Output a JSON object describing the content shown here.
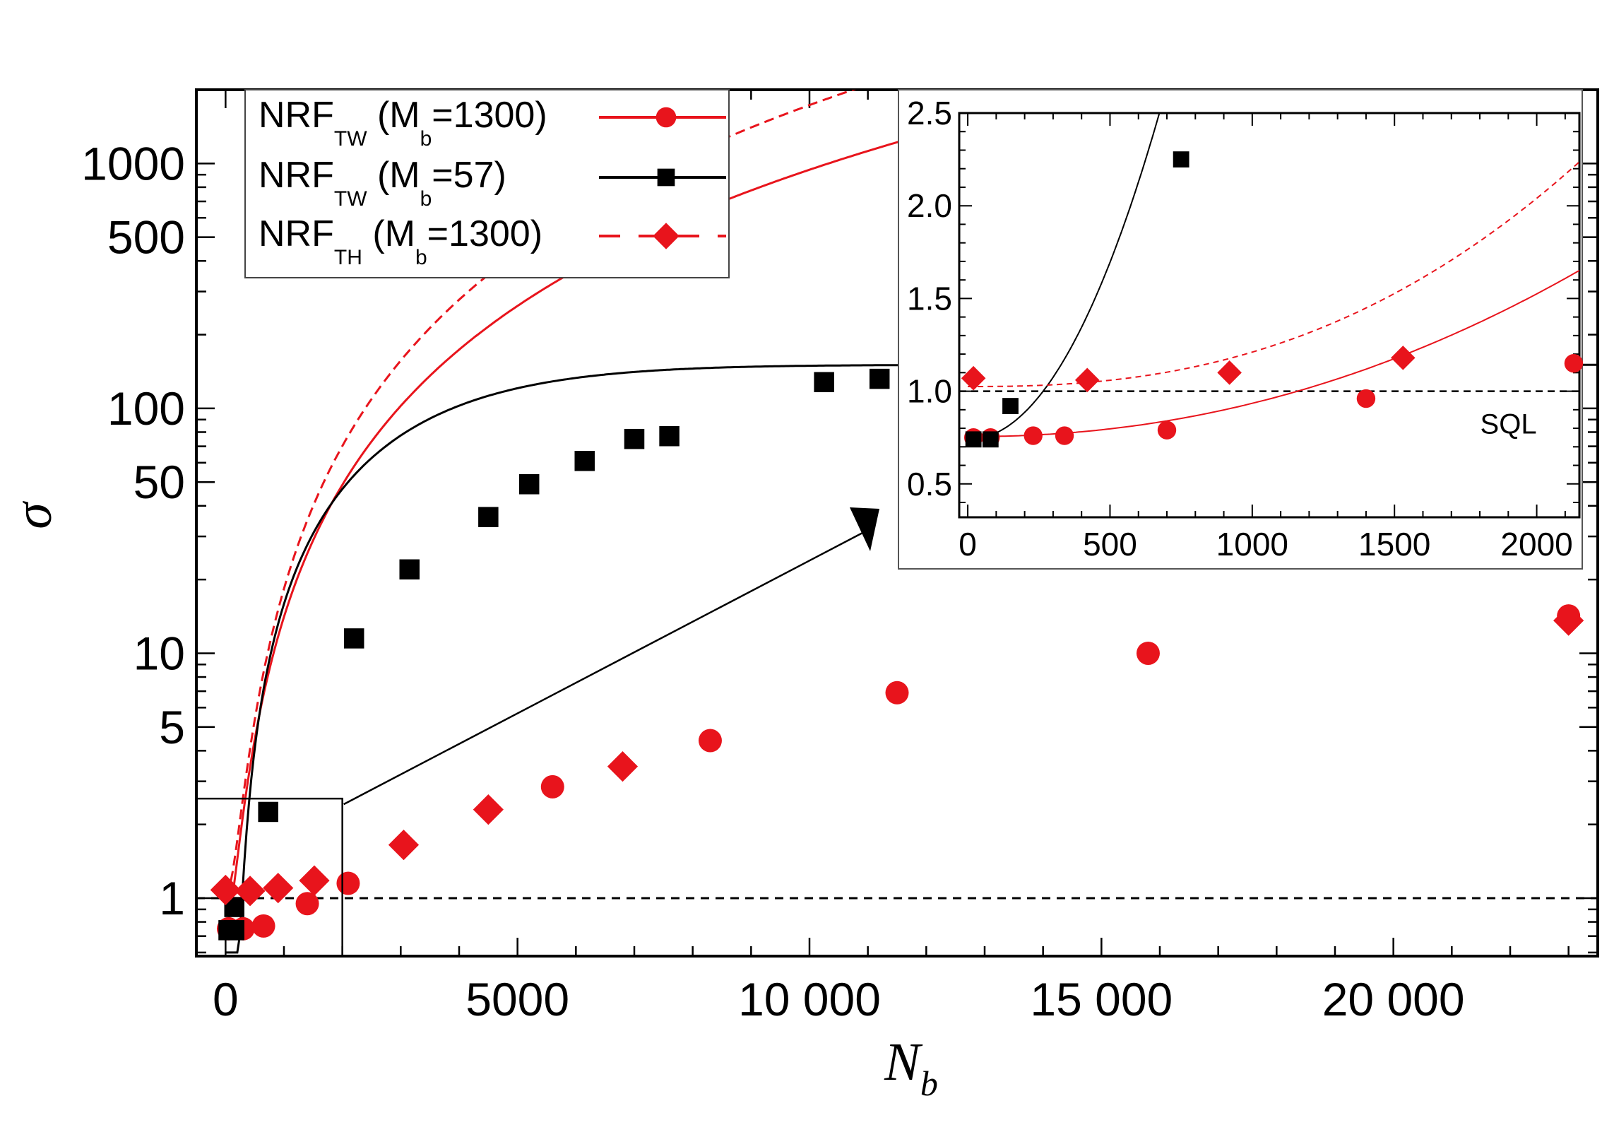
{
  "chart_data": [
    {
      "id": "main",
      "type": "scatter",
      "title": "",
      "xlabel": "N",
      "xlabel_subscript": "b",
      "ylabel": "σ",
      "xscale": "linear",
      "yscale": "log",
      "xlim": [
        -500,
        23500
      ],
      "ylim": [
        0.58,
        2000
      ],
      "xticks": [
        0,
        5000,
        10000,
        15000,
        20000
      ],
      "xtick_labels": [
        "0",
        "5000",
        "10 000",
        "15 000",
        "20 000"
      ],
      "yticks": [
        1,
        5,
        10,
        50,
        100,
        500,
        1000
      ],
      "ytick_labels": [
        "1",
        "5",
        "10",
        "50",
        "100",
        "500",
        "1000"
      ],
      "reference_line": {
        "y": 1,
        "style": "dashed",
        "color": "#000000"
      },
      "legend_position": "top-left",
      "series": [
        {
          "name": "NRF_TW (M_b=1300)",
          "label_main": "NRF",
          "label_sub": "TW",
          "label_paren_pre": " (M",
          "label_paren_sub": "b",
          "label_paren_post": "=1300)",
          "marker": "circle",
          "line": "solid",
          "color": "#e8141c",
          "points": [
            [
              50,
              0.75
            ],
            [
              300,
              0.75
            ],
            [
              650,
              0.77
            ],
            [
              1400,
              0.95
            ],
            [
              2100,
              1.15
            ],
            [
              5600,
              2.85
            ],
            [
              8300,
              4.4
            ],
            [
              11500,
              6.9
            ],
            [
              15800,
              10.0
            ],
            [
              23000,
              14.2
            ]
          ],
          "fit": {
            "a": 0.76,
            "b": 3.75e-05,
            "p": 1.85
          }
        },
        {
          "name": "NRF_TW (M_b=57)",
          "label_main": "NRF",
          "label_sub": "TW",
          "label_paren_pre": " (M",
          "label_paren_sub": "b",
          "label_paren_post": "=57)",
          "marker": "square",
          "line": "solid",
          "color": "#000000",
          "points": [
            [
              50,
              0.74
            ],
            [
              150,
              0.74
            ],
            [
              150,
              0.92
            ],
            [
              730,
              2.25
            ],
            [
              2200,
              11.5
            ],
            [
              3150,
              22
            ],
            [
              4500,
              36
            ],
            [
              5200,
              49
            ],
            [
              6150,
              61
            ],
            [
              7000,
              75
            ],
            [
              7600,
              77
            ],
            [
              10250,
              128
            ],
            [
              11200,
              132
            ]
          ],
          "fit": {
            "cap": 150,
            "k": 0.000288,
            "p": 1.5,
            "n0": 215
          }
        },
        {
          "name": "NRF_TH (M_b=1300)",
          "label_main": "NRF",
          "label_sub": "TH",
          "label_paren_pre": " (M",
          "label_paren_sub": "b",
          "label_paren_post": "=1300)",
          "marker": "diamond",
          "line": "dashed",
          "color": "#e8141c",
          "points": [
            [
              0,
              1.08
            ],
            [
              420,
              1.07
            ],
            [
              900,
              1.1
            ],
            [
              1520,
              1.18
            ],
            [
              3050,
              1.65
            ],
            [
              4500,
              2.3
            ],
            [
              6800,
              3.45
            ],
            [
              23000,
              13.6
            ]
          ],
          "fit": {
            "a": 1.03,
            "b": 1.73e-05,
            "p": 2.0
          }
        }
      ]
    },
    {
      "id": "inset",
      "type": "scatter",
      "xscale": "linear",
      "yscale": "linear",
      "xlim": [
        -30,
        2150
      ],
      "ylim": [
        0.32,
        2.5
      ],
      "xticks": [
        0,
        500,
        1000,
        1500,
        2000
      ],
      "xtick_labels": [
        "0",
        "500",
        "1000",
        "1500",
        "2000"
      ],
      "yticks": [
        0.5,
        1.0,
        1.5,
        2.0,
        2.5
      ],
      "ytick_labels": [
        "0.5",
        "1.0",
        "1.5",
        "2.0",
        "2.5"
      ],
      "reference_line": {
        "y": 1,
        "style": "dashed",
        "color": "#000000",
        "label": "SQL"
      },
      "series": [
        {
          "name": "NRF_TW (M_b=1300)",
          "marker": "circle",
          "color": "#e8141c",
          "points": [
            [
              20,
              0.75
            ],
            [
              80,
              0.75
            ],
            [
              230,
              0.76
            ],
            [
              340,
              0.76
            ],
            [
              700,
              0.79
            ],
            [
              1400,
              0.96
            ],
            [
              2130,
              1.15
            ]
          ]
        },
        {
          "name": "NRF_TW (M_b=57)",
          "marker": "square",
          "color": "#000000",
          "points": [
            [
              20,
              0.74
            ],
            [
              80,
              0.74
            ],
            [
              150,
              0.92
            ],
            [
              750,
              2.25
            ]
          ]
        },
        {
          "name": "NRF_TH (M_b=1300)",
          "marker": "diamond",
          "color": "#e8141c",
          "points": [
            [
              20,
              1.07
            ],
            [
              420,
              1.06
            ],
            [
              920,
              1.1
            ],
            [
              1530,
              1.18
            ]
          ]
        }
      ]
    }
  ]
}
